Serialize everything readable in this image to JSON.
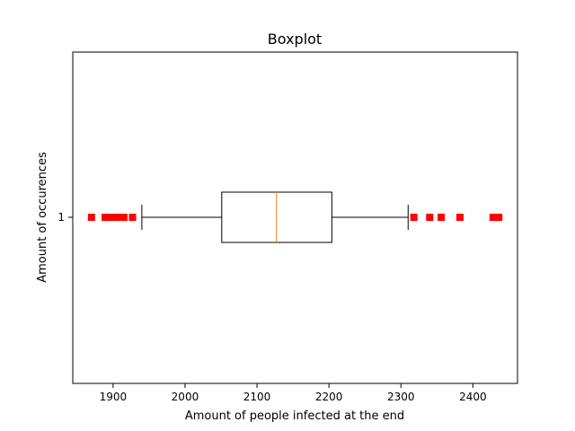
{
  "chart_data": {
    "type": "boxplot",
    "orientation": "horizontal",
    "title": "Boxplot",
    "xlabel": "Amount of people infected at the end",
    "ylabel": "Amount of occurences",
    "xlim": [
      1844,
      2462
    ],
    "x_ticks": [
      1900,
      2000,
      2100,
      2200,
      2300,
      2400
    ],
    "y_ticks": [
      "1"
    ],
    "grid": false,
    "boxes": [
      {
        "position": "1",
        "whisker_low": 1940,
        "q1": 2051,
        "median": 2127,
        "q3": 2204,
        "whisker_high": 2310,
        "outliers": [
          1870,
          1889,
          1895,
          1900,
          1905,
          1911,
          1915,
          1927,
          2318,
          2340,
          2356,
          2382,
          2428,
          2436
        ]
      }
    ],
    "colors": {
      "box": "#000000",
      "median": "#ff7f0e",
      "outlier": "#ff0000"
    }
  }
}
